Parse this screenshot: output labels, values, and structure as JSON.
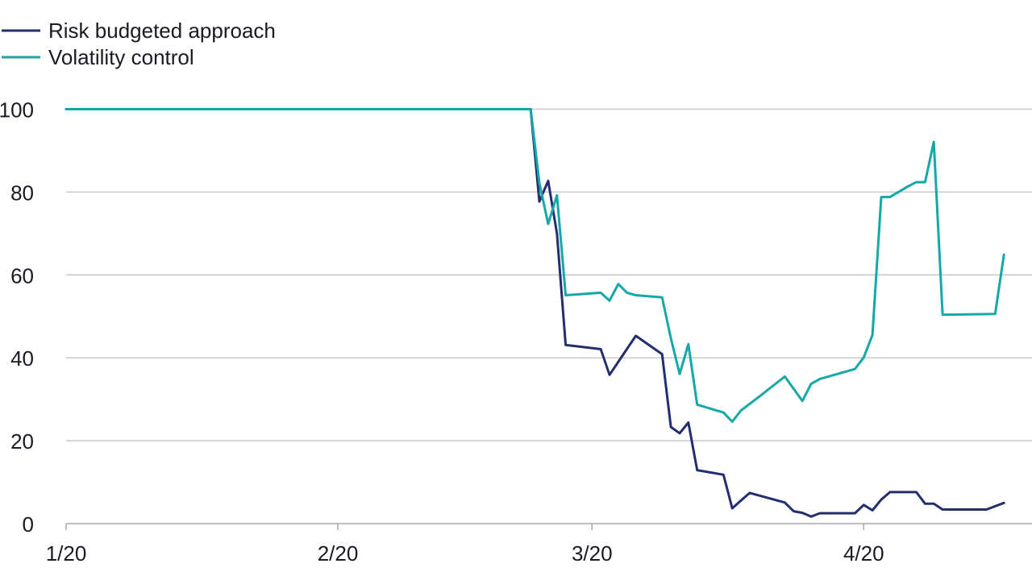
{
  "chart_data": {
    "type": "line",
    "title": "",
    "xlabel": "",
    "ylabel": "",
    "x_ticks": [
      "1/20",
      "2/20",
      "3/20",
      "4/20"
    ],
    "y_ticks": [
      "0",
      "20",
      "40",
      "60",
      "80",
      "100"
    ],
    "ylim": [
      0,
      100
    ],
    "xlim": [
      "2020-01-01",
      "2020-04-17"
    ],
    "grid": "horizontal",
    "legend": "top-left",
    "series": [
      {
        "name": "Risk budgeted approach",
        "color": "#232e6e",
        "points": [
          [
            "2020-01-01",
            100
          ],
          [
            "2020-02-23",
            100
          ],
          [
            "2020-02-24",
            77.7
          ],
          [
            "2020-02-25",
            82.7
          ],
          [
            "2020-02-26",
            70
          ],
          [
            "2020-02-27",
            43.1
          ],
          [
            "2020-03-02",
            42.1
          ],
          [
            "2020-03-03",
            35.9
          ],
          [
            "2020-03-06",
            45.3
          ],
          [
            "2020-03-09",
            40.9
          ],
          [
            "2020-03-10",
            23.3
          ],
          [
            "2020-03-11",
            21.8
          ],
          [
            "2020-03-12",
            24.4
          ],
          [
            "2020-03-13",
            12.9
          ],
          [
            "2020-03-16",
            11.8
          ],
          [
            "2020-03-17",
            3.7
          ],
          [
            "2020-03-18",
            5.6
          ],
          [
            "2020-03-19",
            7.4
          ],
          [
            "2020-03-23",
            5.1
          ],
          [
            "2020-03-24",
            3
          ],
          [
            "2020-03-25",
            2.6
          ],
          [
            "2020-03-26",
            1.7
          ],
          [
            "2020-03-27",
            2.5
          ],
          [
            "2020-03-30",
            2.5
          ],
          [
            "2020-03-31",
            2.5
          ],
          [
            "2020-04-01",
            4.5
          ],
          [
            "2020-04-02",
            3.2
          ],
          [
            "2020-04-03",
            5.8
          ],
          [
            "2020-04-04",
            7.6
          ],
          [
            "2020-04-07",
            7.6
          ],
          [
            "2020-04-08",
            4.8
          ],
          [
            "2020-04-09",
            4.8
          ],
          [
            "2020-04-10",
            3.4
          ],
          [
            "2020-04-15",
            3.4
          ],
          [
            "2020-04-17",
            5
          ]
        ]
      },
      {
        "name": "Volatility control",
        "color": "#14a8a8",
        "points": [
          [
            "2020-01-01",
            100
          ],
          [
            "2020-02-23",
            100
          ],
          [
            "2020-02-24",
            82.2
          ],
          [
            "2020-02-25",
            72.3
          ],
          [
            "2020-02-26",
            79.2
          ],
          [
            "2020-02-27",
            55.1
          ],
          [
            "2020-03-02",
            55.7
          ],
          [
            "2020-03-03",
            53.8
          ],
          [
            "2020-03-04",
            57.8
          ],
          [
            "2020-03-05",
            55.7
          ],
          [
            "2020-03-06",
            55.1
          ],
          [
            "2020-03-09",
            54.6
          ],
          [
            "2020-03-10",
            44.7
          ],
          [
            "2020-03-11",
            36.1
          ],
          [
            "2020-03-12",
            43.3
          ],
          [
            "2020-03-13",
            28.7
          ],
          [
            "2020-03-16",
            26.8
          ],
          [
            "2020-03-17",
            24.6
          ],
          [
            "2020-03-18",
            27.3
          ],
          [
            "2020-03-20",
            30.5
          ],
          [
            "2020-03-23",
            35.5
          ],
          [
            "2020-03-25",
            29.6
          ],
          [
            "2020-03-26",
            33.7
          ],
          [
            "2020-03-27",
            34.9
          ],
          [
            "2020-03-31",
            37.3
          ],
          [
            "2020-04-01",
            40.1
          ],
          [
            "2020-04-02",
            45.5
          ],
          [
            "2020-04-03",
            78.8
          ],
          [
            "2020-04-04",
            78.8
          ],
          [
            "2020-04-06",
            81.3
          ],
          [
            "2020-04-07",
            82.4
          ],
          [
            "2020-04-08",
            82.4
          ],
          [
            "2020-04-09",
            92.1
          ],
          [
            "2020-04-10",
            50.4
          ],
          [
            "2020-04-16",
            50.6
          ],
          [
            "2020-04-17",
            64.9
          ]
        ]
      }
    ]
  }
}
